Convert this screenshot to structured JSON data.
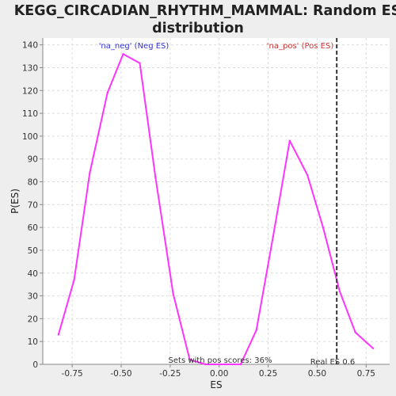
{
  "chart_data": {
    "type": "line",
    "title": "KEGG_CIRCADIAN_RHYTHM_MAMMAL: Random ES distribution",
    "title_lines": [
      "KEGG_CIRCADIAN_RHYTHM_MAMMAL: Random ES",
      "distribution"
    ],
    "xlabel": "ES",
    "ylabel": "P(ES)",
    "xlim": [
      -0.9,
      0.87
    ],
    "ylim": [
      0,
      143
    ],
    "xticks": [
      -0.75,
      -0.5,
      -0.25,
      0.0,
      0.25,
      0.5,
      0.75
    ],
    "xtick_labels": [
      "-0.75",
      "-0.50",
      "-0.25",
      "0.00",
      "0.25",
      "0.50",
      "0.75"
    ],
    "yticks": [
      0,
      10,
      20,
      30,
      40,
      50,
      60,
      70,
      80,
      90,
      100,
      110,
      120,
      130,
      140
    ],
    "grid": true,
    "series": [
      {
        "color": "#ff33ff",
        "x": [
          -0.82,
          -0.74,
          -0.66,
          -0.57,
          -0.49,
          -0.405,
          -0.325,
          -0.235,
          -0.15,
          -0.07,
          0.01,
          0.11,
          0.19,
          0.275,
          0.36,
          0.45,
          0.53,
          0.615,
          0.695,
          0.785
        ],
        "y": [
          13,
          37,
          84,
          119,
          136,
          132,
          82,
          31,
          2,
          0,
          0,
          0,
          15,
          56,
          98,
          83,
          60,
          32,
          14,
          7
        ]
      }
    ],
    "real_es": {
      "value": 0.6,
      "label": "Real ES 0.6",
      "color": "#333333"
    },
    "annotations": {
      "neg": {
        "text": "'na_neg' (Neg ES)",
        "color": "#3333cc"
      },
      "pos": {
        "text": "'na_pos' (Pos ES)",
        "color": "#cc3333"
      },
      "sets": {
        "text": "Sets with pos scores: 36%",
        "color": "#333333"
      }
    }
  }
}
